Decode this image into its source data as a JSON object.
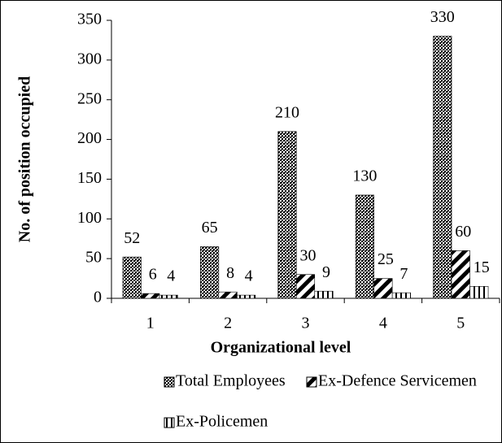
{
  "chart_data": {
    "type": "bar",
    "x_label": "Organizational level",
    "y_label": "No. of position occupied",
    "categories": [
      "1",
      "2",
      "3",
      "4",
      "5"
    ],
    "series": [
      {
        "name": "Total Employees",
        "color": "#000000",
        "pattern": "dots",
        "values": [
          52,
          65,
          210,
          130,
          330
        ]
      },
      {
        "name": "Ex-Defence Servicemen",
        "color": "#000000",
        "pattern": "diagonal",
        "values": [
          6,
          8,
          30,
          25,
          60
        ]
      },
      {
        "name": "Ex-Policemen",
        "color": "#000000",
        "pattern": "vertical",
        "values": [
          4,
          4,
          9,
          7,
          15
        ]
      }
    ],
    "ylim": [
      0,
      350
    ],
    "yticks": [
      0,
      50,
      100,
      150,
      200,
      250,
      300,
      350
    ],
    "grid": false
  }
}
